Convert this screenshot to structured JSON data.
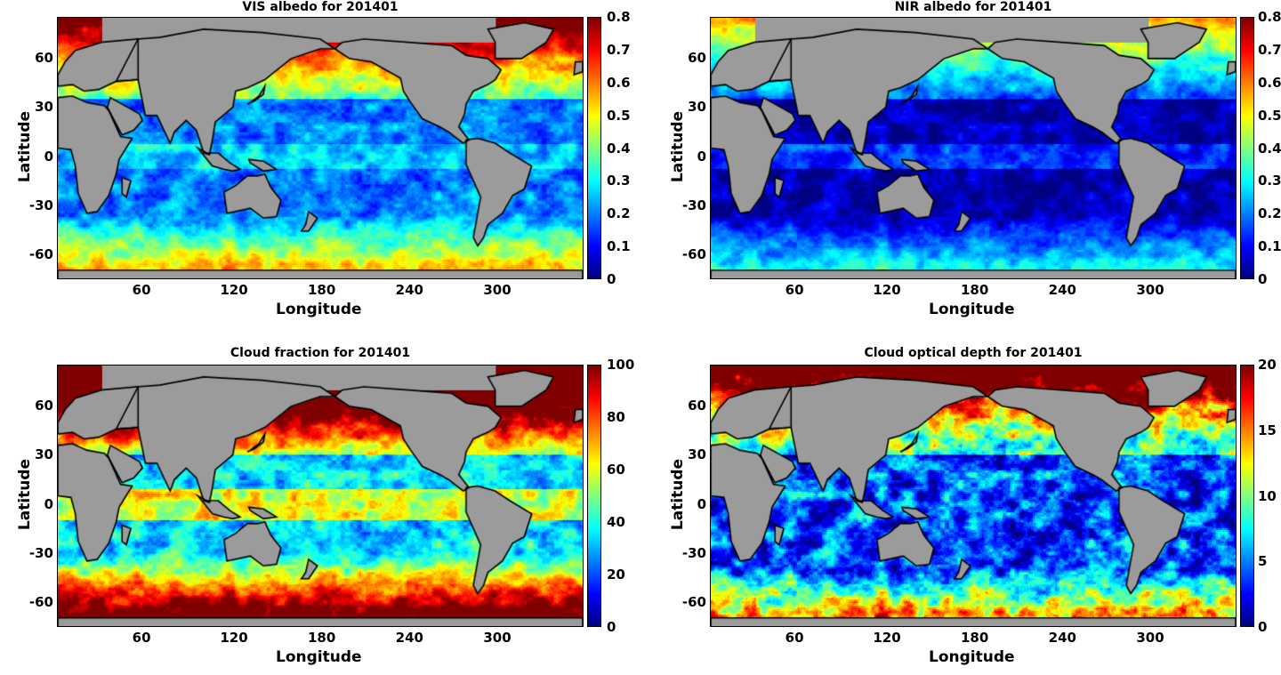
{
  "panels": [
    {
      "id": "vis",
      "title": "VIS albedo for 201401",
      "cbar_ticks": [
        "0.8",
        "0.7",
        "0.6",
        "0.5",
        "0.4",
        "0.3",
        "0.2",
        "0.1",
        "0"
      ],
      "vmin": 0,
      "vmax": 0.8
    },
    {
      "id": "nir",
      "title": "NIR albedo for 201401",
      "cbar_ticks": [
        "0.8",
        "0.7",
        "0.6",
        "0.5",
        "0.4",
        "0.3",
        "0.2",
        "0.1",
        "0"
      ],
      "vmin": 0,
      "vmax": 0.8
    },
    {
      "id": "cf",
      "title": "Cloud fraction for 201401",
      "cbar_ticks": [
        "100",
        "80",
        "60",
        "40",
        "20",
        "0"
      ],
      "vmin": 0,
      "vmax": 100
    },
    {
      "id": "cod",
      "title": "Cloud optical depth for 201401",
      "cbar_ticks": [
        "20",
        "15",
        "10",
        "5",
        "0"
      ],
      "vmin": 0,
      "vmax": 20
    }
  ],
  "axes": {
    "xlabel": "Longitude",
    "ylabel": "Latitude",
    "xticks": [
      "60",
      "120",
      "180",
      "240",
      "300"
    ],
    "yticks": [
      "60",
      "30",
      "0",
      "-30",
      "-60"
    ]
  },
  "colormap": "jet",
  "land_color": "#9b9b9b"
}
